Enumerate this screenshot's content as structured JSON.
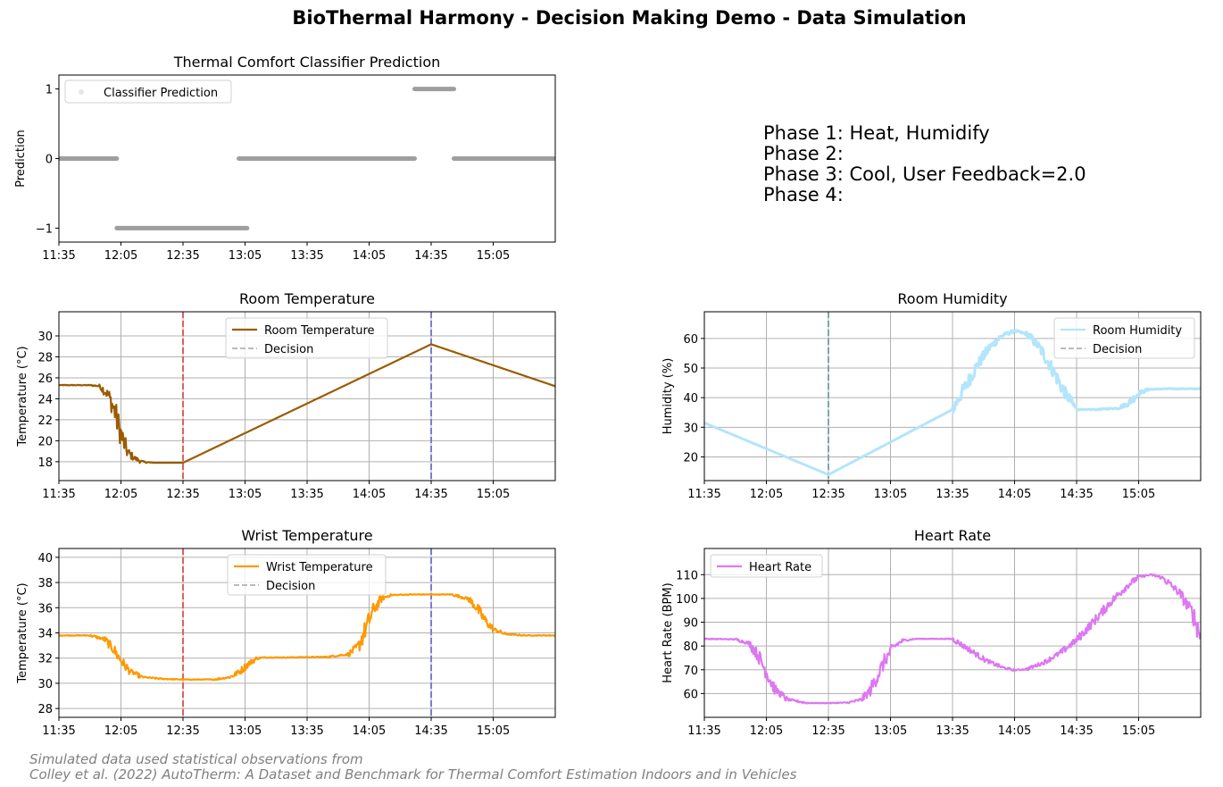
{
  "suptitle": "BioThermal Harmony  -  Decision Making Demo  -  Data Simulation",
  "footnote": {
    "line1": "Simulated data used statistical observations from",
    "line2": "Colley et al. (2022) AutoTherm: A Dataset and Benchmark for Thermal Comfort Estimation Indoors and in Vehicles"
  },
  "phase_text": [
    "Phase 1: Heat, Humidify",
    "Phase 2:",
    "Phase 3: Cool, User Feedback=2.0",
    "Phase 4:"
  ],
  "colors": {
    "classifier": "#999999",
    "room_temperature": "#9b5b00",
    "room_humidity": "#b3e5fc",
    "wrist_temperature": "#ff9900",
    "heart_rate": "#dd77f2",
    "decision_legend": "#bbbbbb",
    "decision_red": "#e06060",
    "decision_blue": "#7b7bd6",
    "decision_teal": "#7fa8a8"
  },
  "chart_data": [
    {
      "id": "classifier",
      "type": "scatter",
      "title": "Thermal Comfort Classifier Prediction",
      "xlabel": "",
      "ylabel": "Prediction",
      "x_unit": "minutes since 11:35",
      "xlim": [
        0,
        240
      ],
      "ylim": [
        -1.2,
        1.2
      ],
      "xticks": [
        0,
        30,
        60,
        90,
        120,
        150,
        180,
        210
      ],
      "xtick_labels": [
        "11:35",
        "12:05",
        "12:35",
        "13:05",
        "13:35",
        "14:05",
        "14:35",
        "15:05"
      ],
      "yticks": [
        -1,
        0,
        1
      ],
      "ytick_labels": [
        "−1",
        "0",
        "1"
      ],
      "grid": false,
      "legend": {
        "position": "upper-left",
        "entries": [
          "Classifier Prediction"
        ]
      },
      "segments": [
        {
          "value": 0,
          "start": 0,
          "end": 28
        },
        {
          "value": -1,
          "start": 28,
          "end": 91
        },
        {
          "value": 0,
          "start": 87,
          "end": 172
        },
        {
          "value": 1,
          "start": 172,
          "end": 191
        },
        {
          "value": 0,
          "start": 191,
          "end": 240
        }
      ]
    },
    {
      "id": "room_temperature",
      "type": "line",
      "title": "Room Temperature",
      "xlabel": "",
      "ylabel": "Temperature (°C)",
      "xlim": [
        0,
        240
      ],
      "ylim": [
        16.2,
        32.3
      ],
      "xticks": [
        0,
        30,
        60,
        90,
        120,
        150,
        180,
        210
      ],
      "xtick_labels": [
        "11:35",
        "12:05",
        "12:35",
        "13:05",
        "13:35",
        "14:05",
        "14:35",
        "15:05"
      ],
      "yticks": [
        18,
        20,
        22,
        24,
        26,
        28,
        30
      ],
      "ytick_labels": [
        "18",
        "20",
        "22",
        "24",
        "26",
        "28",
        "30"
      ],
      "grid": true,
      "legend": {
        "position": "upper-center",
        "entries": [
          "Room Temperature",
          "Decision"
        ]
      },
      "decisions": [
        {
          "x": 60,
          "color": "red"
        },
        {
          "x": 180,
          "color": "blue"
        }
      ],
      "series": [
        {
          "name": "Room Temperature",
          "x": [
            0,
            15,
            20,
            24,
            27,
            29,
            31,
            33,
            36,
            40,
            45,
            50,
            60,
            180,
            240
          ],
          "y": [
            25.3,
            25.3,
            25.2,
            24.3,
            22.8,
            21.3,
            20.0,
            19.0,
            18.4,
            18.0,
            17.9,
            17.9,
            17.9,
            29.2,
            25.2
          ],
          "noisy_until": 45
        }
      ]
    },
    {
      "id": "room_humidity",
      "type": "line",
      "title": "Room Humidity",
      "xlabel": "",
      "ylabel": "Humidity (%)",
      "xlim": [
        0,
        240
      ],
      "ylim": [
        12,
        69
      ],
      "xticks": [
        0,
        30,
        60,
        90,
        120,
        150,
        180,
        210
      ],
      "xtick_labels": [
        "11:35",
        "12:05",
        "12:35",
        "13:05",
        "13:35",
        "14:05",
        "14:35",
        "15:05"
      ],
      "yticks": [
        20,
        30,
        40,
        50,
        60
      ],
      "ytick_labels": [
        "20",
        "30",
        "40",
        "50",
        "60"
      ],
      "grid": true,
      "legend": {
        "position": "upper-right",
        "entries": [
          "Room Humidity",
          "Decision"
        ]
      },
      "decisions": [
        {
          "x": 60,
          "color": "teal"
        }
      ],
      "series": [
        {
          "name": "Room Humidity",
          "x": [
            0,
            60,
            120,
            126,
            132,
            138,
            144,
            150,
            156,
            162,
            168,
            174,
            180,
            190,
            200,
            205,
            210,
            215,
            225,
            240
          ],
          "y": [
            31.5,
            14,
            36,
            43.5,
            51,
            57,
            61,
            62.5,
            61.5,
            57,
            50,
            42,
            36,
            36,
            36.5,
            38,
            41.5,
            42.8,
            43,
            43
          ],
          "noisy_from": 120
        }
      ]
    },
    {
      "id": "wrist_temperature",
      "type": "line",
      "title": "Wrist Temperature",
      "xlabel": "",
      "ylabel": "Temperature (°C)",
      "xlim": [
        0,
        240
      ],
      "ylim": [
        27.3,
        40.7
      ],
      "xticks": [
        0,
        30,
        60,
        90,
        120,
        150,
        180,
        210
      ],
      "xtick_labels": [
        "11:35",
        "12:05",
        "12:35",
        "13:05",
        "13:35",
        "14:05",
        "14:35",
        "15:05"
      ],
      "yticks": [
        28,
        30,
        32,
        34,
        36,
        38,
        40
      ],
      "ytick_labels": [
        "28",
        "30",
        "32",
        "34",
        "36",
        "38",
        "40"
      ],
      "grid": true,
      "legend": {
        "position": "upper-center",
        "entries": [
          "Wrist Temperature",
          "Decision"
        ]
      },
      "decisions": [
        {
          "x": 60,
          "color": "red"
        },
        {
          "x": 180,
          "color": "blue"
        }
      ],
      "series": [
        {
          "name": "Wrist Temperature",
          "x": [
            0,
            15,
            22,
            26,
            30,
            34,
            40,
            50,
            60,
            75,
            83,
            88,
            92,
            96,
            100,
            110,
            130,
            140,
            145,
            148,
            152,
            156,
            160,
            170,
            180,
            190,
            198,
            202,
            206,
            210,
            216,
            225,
            240
          ],
          "y": [
            33.8,
            33.8,
            33.5,
            32.8,
            31.8,
            31.0,
            30.5,
            30.35,
            30.3,
            30.3,
            30.5,
            31.0,
            31.6,
            32.0,
            32.05,
            32.05,
            32.1,
            32.3,
            33.0,
            34.2,
            35.8,
            36.7,
            37.0,
            37.05,
            37.05,
            37.05,
            36.7,
            36.0,
            35.0,
            34.3,
            33.9,
            33.8,
            33.8
          ],
          "noisy": true
        }
      ]
    },
    {
      "id": "heart_rate",
      "type": "line",
      "title": "Heart Rate",
      "xlabel": "",
      "ylabel": "Heart Rate (BPM)",
      "xlim": [
        0,
        240
      ],
      "ylim": [
        50,
        121
      ],
      "xticks": [
        0,
        30,
        60,
        90,
        120,
        150,
        180,
        210
      ],
      "xtick_labels": [
        "11:35",
        "12:05",
        "12:35",
        "13:05",
        "13:35",
        "14:05",
        "14:35",
        "15:05"
      ],
      "yticks": [
        60,
        70,
        80,
        90,
        100,
        110
      ],
      "ytick_labels": [
        "60",
        "70",
        "80",
        "90",
        "100",
        "110"
      ],
      "grid": true,
      "legend": {
        "position": "upper-left",
        "entries": [
          "Heart Rate"
        ]
      },
      "decisions": [],
      "series": [
        {
          "name": "Heart Rate",
          "x": [
            0,
            15,
            22,
            26,
            30,
            34,
            40,
            50,
            60,
            70,
            76,
            80,
            84,
            88,
            92,
            96,
            102,
            110,
            120,
            128,
            136,
            144,
            150,
            156,
            164,
            172,
            180,
            188,
            196,
            204,
            210,
            216,
            222,
            230,
            236,
            240
          ],
          "y": [
            83,
            82.8,
            81,
            76,
            69,
            62,
            57.5,
            56,
            56,
            56.2,
            57.5,
            61,
            68,
            75,
            80,
            82.3,
            83,
            83,
            83,
            78.5,
            74,
            71,
            69.8,
            70.3,
            73,
            77,
            82.5,
            90,
            98,
            105,
            109,
            110,
            108.5,
            102,
            94,
            84
          ],
          "noisy": true
        }
      ]
    }
  ]
}
